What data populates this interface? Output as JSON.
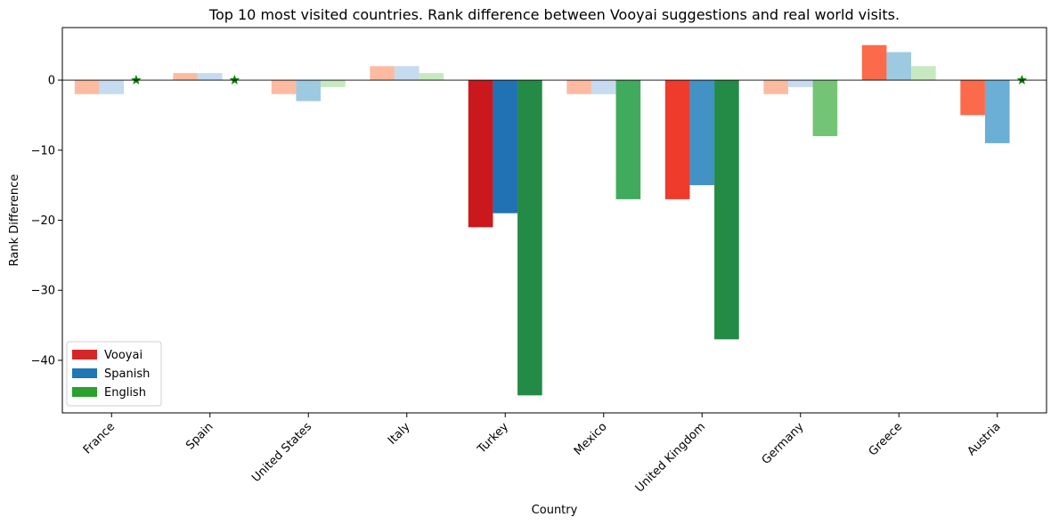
{
  "chart_data": {
    "type": "bar",
    "title": "Top 10 most visited countries. Rank difference between Vooyai suggestions and real world visits.",
    "xlabel": "Country",
    "ylabel": "Rank Difference",
    "categories": [
      "France",
      "Spain",
      "United States",
      "Italy",
      "Turkey",
      "Mexico",
      "United Kingdom",
      "Germany",
      "Greece",
      "Austria"
    ],
    "series": [
      {
        "name": "Vooyai",
        "values": [
          -2,
          1,
          -2,
          2,
          -21,
          -2,
          -17,
          -2,
          5,
          -5
        ]
      },
      {
        "name": "Spanish",
        "values": [
          -2,
          1,
          -3,
          2,
          -19,
          -2,
          -15,
          -1,
          4,
          -9
        ]
      },
      {
        "name": "English",
        "values": [
          0,
          0,
          -1,
          1,
          -45,
          -17,
          -37,
          -8,
          2,
          0
        ]
      }
    ],
    "star_markers": [
      {
        "category": "France",
        "series": "English",
        "value": 0
      },
      {
        "category": "Spain",
        "series": "English",
        "value": 0
      },
      {
        "category": "Austria",
        "series": "English",
        "value": 0
      }
    ],
    "ylim": [
      -47.5,
      7.5
    ],
    "yticks": [
      -40,
      -30,
      -20,
      -10,
      0
    ],
    "ytick_labels": [
      "−40",
      "−30",
      "−20",
      "−10",
      "0"
    ],
    "grid": false,
    "legend_position": "lower-left",
    "colors": {
      "reds": [
        "#fcbba1",
        "#fc9272",
        "#fb6a4a",
        "#ef3b2c",
        "#cb181d"
      ],
      "blues": [
        "#c6dbef",
        "#9ecae1",
        "#6baed6",
        "#4292c6",
        "#2171b5"
      ],
      "greens": [
        "#c7e9c0",
        "#a1d99b",
        "#74c476",
        "#41ab5d",
        "#238b45"
      ],
      "legend": [
        "#d62728",
        "#1f77b4",
        "#2ca02c"
      ],
      "star": "#008000"
    }
  }
}
